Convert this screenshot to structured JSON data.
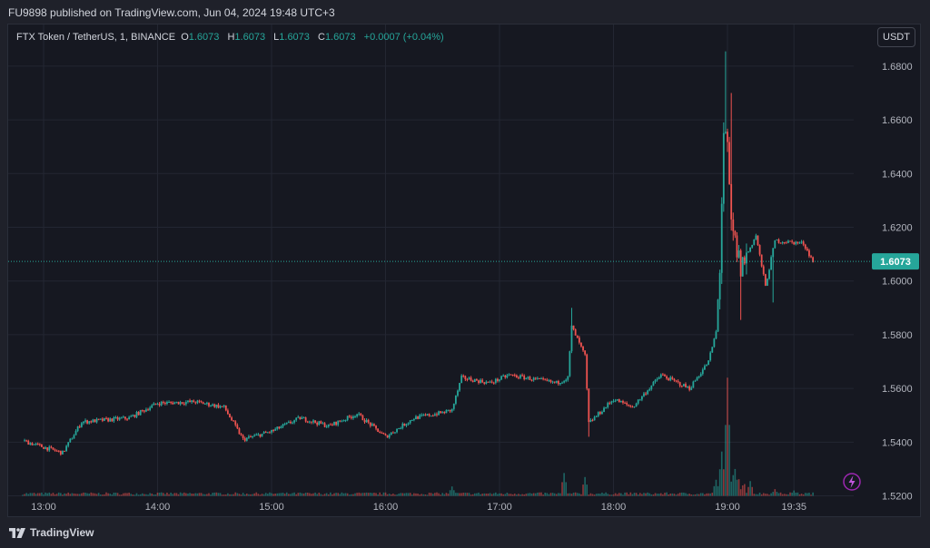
{
  "header": {
    "published_line": "FU9898 published on TradingView.com, Jun 04, 2024 19:48 UTC+3"
  },
  "legend": {
    "symbol": "FTX Token / TetherUS, 1, BINANCE",
    "open_label": "O",
    "open": "1.6073",
    "high_label": "H",
    "high": "1.6073",
    "low_label": "L",
    "low": "1.6073",
    "close_label": "C",
    "close": "1.6073",
    "change": "+0.0007 (+0.04%)"
  },
  "currency_button": "USDT",
  "price_tag": "1.6073",
  "footer": {
    "brand": "TradingView"
  },
  "colors": {
    "up": "#26a69a",
    "down": "#ef5350",
    "grid": "#232632",
    "last_price_line": "#26a69a",
    "background": "#161821"
  },
  "icons": {
    "lightning": "lightning-icon",
    "logo": "tradingview-logo-icon"
  },
  "chart_data": {
    "type": "candlestick",
    "y_axis": {
      "ticks": [
        "1.6800",
        "1.6600",
        "1.6400",
        "1.6200",
        "1.6000",
        "1.5800",
        "1.5600",
        "1.5400",
        "1.5200"
      ],
      "range": [
        1.5195,
        1.6955
      ]
    },
    "x_axis": {
      "ticks": [
        "13:00",
        "14:00",
        "15:00",
        "16:00",
        "17:00",
        "18:00",
        "19:00",
        "19:35"
      ]
    },
    "last_price": 1.6073,
    "keypoints": [
      [
        "12:49",
        1.5405
      ],
      [
        "13:10",
        1.536
      ],
      [
        "13:20",
        1.5475
      ],
      [
        "13:45",
        1.549
      ],
      [
        "14:00",
        1.5545
      ],
      [
        "14:20",
        1.555
      ],
      [
        "14:35",
        1.553
      ],
      [
        "14:45",
        1.541
      ],
      [
        "15:00",
        1.544
      ],
      [
        "15:15",
        1.549
      ],
      [
        "15:30",
        1.546
      ],
      [
        "15:45",
        1.5505
      ],
      [
        "16:00",
        1.542
      ],
      [
        "16:15",
        1.549
      ],
      [
        "16:30",
        1.551
      ],
      [
        "16:35",
        1.552
      ],
      [
        "16:40",
        1.564
      ],
      [
        "16:55",
        1.562
      ],
      [
        "17:05",
        1.565
      ],
      [
        "17:30",
        1.562
      ],
      [
        "17:36",
        1.564
      ],
      [
        "17:38",
        1.583
      ],
      [
        "17:45",
        1.572
      ],
      [
        "17:47",
        1.547
      ],
      [
        "18:00",
        1.556
      ],
      [
        "18:10",
        1.553
      ],
      [
        "18:25",
        1.565
      ],
      [
        "18:40",
        1.56
      ],
      [
        "18:50",
        1.57
      ],
      [
        "18:54",
        1.581
      ],
      [
        "18:56",
        1.605
      ],
      [
        "18:58",
        1.655
      ],
      [
        "19:00",
        1.648
      ],
      [
        "19:02",
        1.62
      ],
      [
        "19:07",
        1.605
      ],
      [
        "19:15",
        1.617
      ],
      [
        "19:20",
        1.598
      ],
      [
        "19:25",
        1.615
      ],
      [
        "19:40",
        1.614
      ],
      [
        "19:45",
        1.6073
      ]
    ],
    "volume": {
      "baseline": 1.52,
      "spikes": [
        [
          "16:35",
          0.0035
        ],
        [
          "17:34",
          0.0085
        ],
        [
          "17:45",
          0.007
        ],
        [
          "18:54",
          0.006
        ],
        [
          "18:57",
          0.0165
        ],
        [
          "19:00",
          0.044
        ],
        [
          "19:04",
          0.01
        ],
        [
          "19:12",
          0.0055
        ],
        [
          "19:25",
          0.0025
        ],
        [
          "19:35",
          0.002
        ]
      ]
    }
  }
}
